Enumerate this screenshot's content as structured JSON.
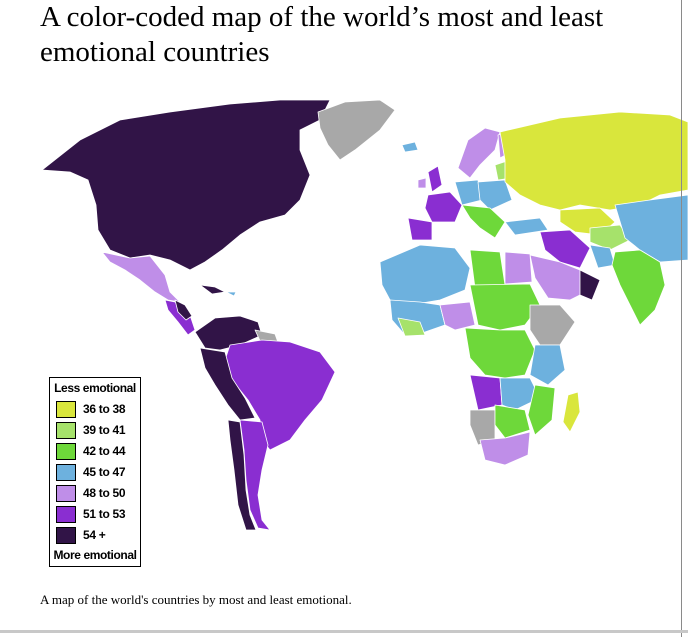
{
  "title": "A color-coded map of the world’s most and least emotional countries",
  "caption": "A map of the world's countries by most and least emotional.",
  "legend": {
    "top_label": "Less emotional",
    "bottom_label": "More emotional",
    "items": [
      {
        "label": "36 to 38",
        "color": "#d9e63c"
      },
      {
        "label": "39 to 41",
        "color": "#a6e26b"
      },
      {
        "label": "42 to 44",
        "color": "#6ed83a"
      },
      {
        "label": "45 to 47",
        "color": "#6db1de"
      },
      {
        "label": "48 to 50",
        "color": "#bf8ee8"
      },
      {
        "label": "51 to 53",
        "color": "#8a2ed1"
      },
      {
        "label": "54 +",
        "color": "#311447"
      }
    ]
  },
  "colors": {
    "no_data": "#a8a8a8",
    "ocean": "#ffffff",
    "border": "#ffffff"
  }
}
